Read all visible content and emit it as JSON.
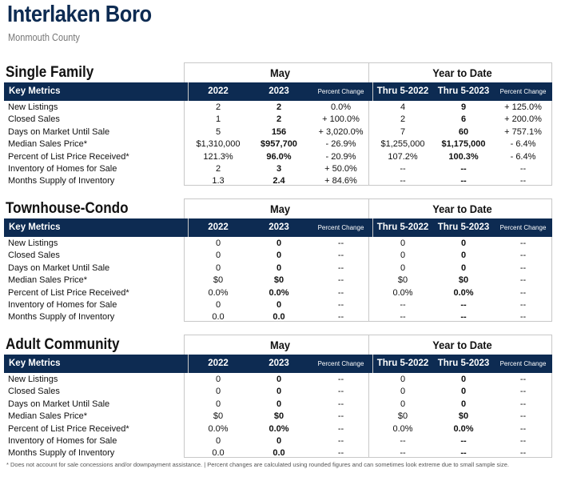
{
  "title": "Interlaken Boro",
  "subtitle": "Monmouth County",
  "header": {
    "group_month": "May",
    "group_ytd": "Year to Date",
    "key_metrics": "Key Metrics",
    "cols": [
      "2022",
      "2023",
      "Percent Change",
      "Thru 5-2022",
      "Thru 5-2023",
      "Percent Change"
    ]
  },
  "metrics": [
    "New Listings",
    "Closed Sales",
    "Days on Market Until Sale",
    "Median Sales Price*",
    "Percent of List Price Received*",
    "Inventory of Homes for Sale",
    "Months Supply of Inventory"
  ],
  "sections": [
    {
      "name": "Single Family",
      "rows": [
        [
          "2",
          "2",
          "0.0%",
          "4",
          "9",
          "+ 125.0%"
        ],
        [
          "1",
          "2",
          "+ 100.0%",
          "2",
          "6",
          "+ 200.0%"
        ],
        [
          "5",
          "156",
          "+ 3,020.0%",
          "7",
          "60",
          "+ 757.1%"
        ],
        [
          "$1,310,000",
          "$957,700",
          "- 26.9%",
          "$1,255,000",
          "$1,175,000",
          "- 6.4%"
        ],
        [
          "121.3%",
          "96.0%",
          "- 20.9%",
          "107.2%",
          "100.3%",
          "- 6.4%"
        ],
        [
          "2",
          "3",
          "+ 50.0%",
          "--",
          "--",
          "--"
        ],
        [
          "1.3",
          "2.4",
          "+ 84.6%",
          "--",
          "--",
          "--"
        ]
      ]
    },
    {
      "name": "Townhouse-Condo",
      "rows": [
        [
          "0",
          "0",
          "--",
          "0",
          "0",
          "--"
        ],
        [
          "0",
          "0",
          "--",
          "0",
          "0",
          "--"
        ],
        [
          "0",
          "0",
          "--",
          "0",
          "0",
          "--"
        ],
        [
          "$0",
          "$0",
          "--",
          "$0",
          "$0",
          "--"
        ],
        [
          "0.0%",
          "0.0%",
          "--",
          "0.0%",
          "0.0%",
          "--"
        ],
        [
          "0",
          "0",
          "--",
          "--",
          "--",
          "--"
        ],
        [
          "0.0",
          "0.0",
          "--",
          "--",
          "--",
          "--"
        ]
      ]
    },
    {
      "name": "Adult Community",
      "rows": [
        [
          "0",
          "0",
          "--",
          "0",
          "0",
          "--"
        ],
        [
          "0",
          "0",
          "--",
          "0",
          "0",
          "--"
        ],
        [
          "0",
          "0",
          "--",
          "0",
          "0",
          "--"
        ],
        [
          "$0",
          "$0",
          "--",
          "$0",
          "$0",
          "--"
        ],
        [
          "0.0%",
          "0.0%",
          "--",
          "0.0%",
          "0.0%",
          "--"
        ],
        [
          "0",
          "0",
          "--",
          "--",
          "--",
          "--"
        ],
        [
          "0.0",
          "0.0",
          "--",
          "--",
          "--",
          "--"
        ]
      ]
    }
  ],
  "footnote": "* Does not account for sale concessions and/or downpayment assistance.  |  Percent changes are calculated using rounded figures and can sometimes look extreme due to small sample size."
}
